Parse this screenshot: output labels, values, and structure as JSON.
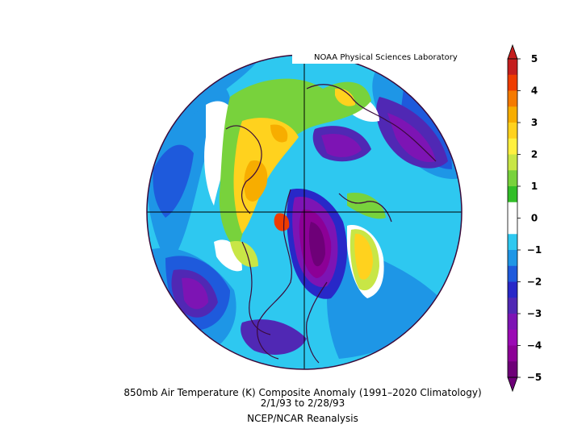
{
  "source": "NOAA Physical Sciences Laboratory",
  "title": {
    "line1": "850mb Air Temperature (K) Composite Anomaly (1991–2020 Climatology)",
    "line2": "2/1/93  to 2/28/93",
    "line3": "NCEP/NCAR Reanalysis"
  },
  "colorbar": {
    "ticks": [
      "5",
      "4",
      "3",
      "2",
      "1",
      "0",
      "−1",
      "−2",
      "−3",
      "−4",
      "−5"
    ],
    "colors": [
      "#c41e1e",
      "#ee3c00",
      "#f57a00",
      "#f7ad00",
      "#ffd21e",
      "#fff040",
      "#c8e646",
      "#78d23c",
      "#32be28",
      "#ffffff",
      "#ffffff",
      "#2ec8f0",
      "#1e96e6",
      "#1e5adc",
      "#2828c8",
      "#5028b4",
      "#7d14b4",
      "#9b0ab4",
      "#8c0096",
      "#6e0078"
    ]
  },
  "palette": {
    "ocean_blue": "#1e96e6",
    "deep_blue": "#1e5adc",
    "purple": "#7d14b4",
    "dark_purple": "#8c0096",
    "yellow": "#ffd21e",
    "green": "#78d23c",
    "orange": "#f7ad00",
    "red": "#ee3c00",
    "coastline": "#3a0a3a"
  }
}
